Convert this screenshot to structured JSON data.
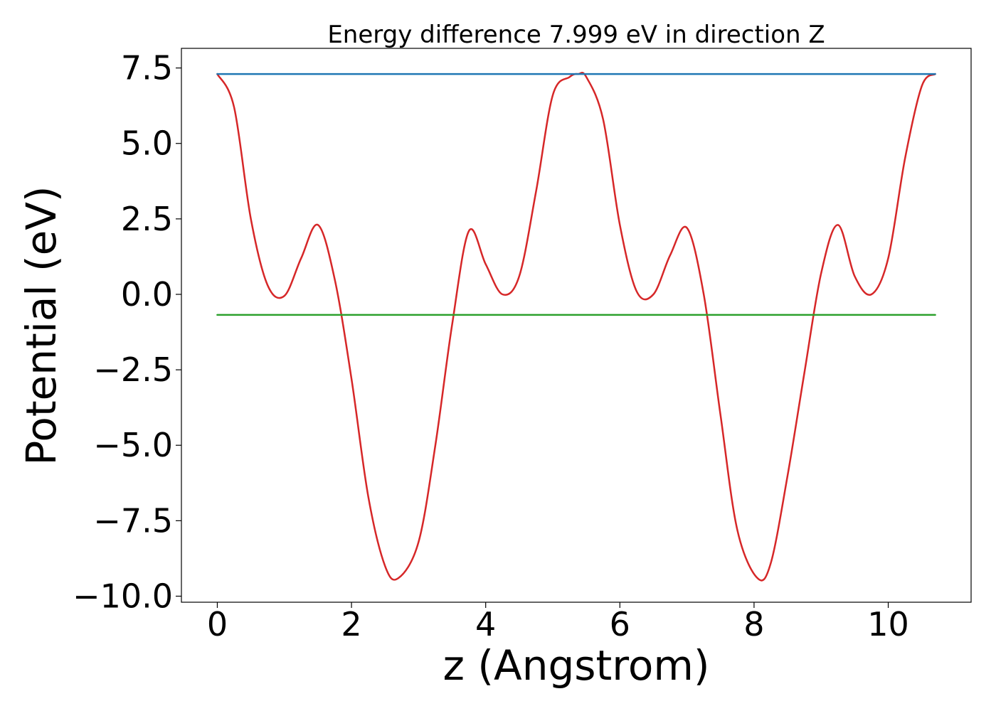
{
  "chart_data": {
    "type": "line",
    "title": "Energy difference 7.999 eV in direction Z",
    "xlabel": "z (Angstrom)",
    "ylabel": "Potential (eV)",
    "xlim": [
      -0.535,
      11.235
    ],
    "ylim": [
      -10.2,
      8.15
    ],
    "xticks": [
      0,
      2,
      4,
      6,
      8,
      10
    ],
    "xtick_labels": [
      "0",
      "2",
      "4",
      "6",
      "8",
      "10"
    ],
    "yticks": [
      7.5,
      5.0,
      2.5,
      0.0,
      -2.5,
      -5.0,
      -7.5,
      -10.0
    ],
    "ytick_labels": [
      "7.5",
      "5.0",
      "2.5",
      "0.0",
      "−2.5",
      "−5.0",
      "−7.5",
      "−10.0"
    ],
    "grid": false,
    "legend": "none",
    "series": [
      {
        "color": "#d62728",
        "x": [
          0.0,
          0.25,
          0.5,
          0.75,
          1.0,
          1.25,
          1.5,
          1.75,
          2.0,
          2.25,
          2.5,
          2.7,
          3.0,
          3.25,
          3.5,
          3.75,
          4.0,
          4.25,
          4.5,
          4.75,
          5.0,
          5.25,
          5.38,
          5.5,
          5.75,
          6.0,
          6.25,
          6.5,
          6.75,
          7.0,
          7.25,
          7.5,
          7.75,
          8.05,
          8.25,
          8.5,
          8.75,
          9.0,
          9.25,
          9.5,
          9.75,
          10.0,
          10.25,
          10.5,
          10.7
        ],
        "y": [
          7.3,
          6.2,
          2.5,
          0.3,
          -0.05,
          1.2,
          2.3,
          0.5,
          -2.8,
          -6.7,
          -9.0,
          -9.4,
          -8.2,
          -5.0,
          -1.0,
          2.1,
          1.0,
          0.0,
          0.6,
          3.4,
          6.6,
          7.2,
          7.3,
          7.2,
          5.8,
          2.3,
          0.1,
          0.0,
          1.3,
          2.2,
          0.0,
          -4.0,
          -7.8,
          -9.4,
          -8.9,
          -6.0,
          -2.6,
          0.7,
          2.3,
          0.6,
          0.0,
          1.2,
          4.5,
          6.9,
          7.3
        ]
      },
      {
        "color": "#1f77b4",
        "x": [
          0.0,
          10.7
        ],
        "y": [
          7.3,
          7.3
        ]
      },
      {
        "color": "#2ca02c",
        "x": [
          0.0,
          10.7
        ],
        "y": [
          -0.68,
          -0.68
        ]
      }
    ]
  }
}
